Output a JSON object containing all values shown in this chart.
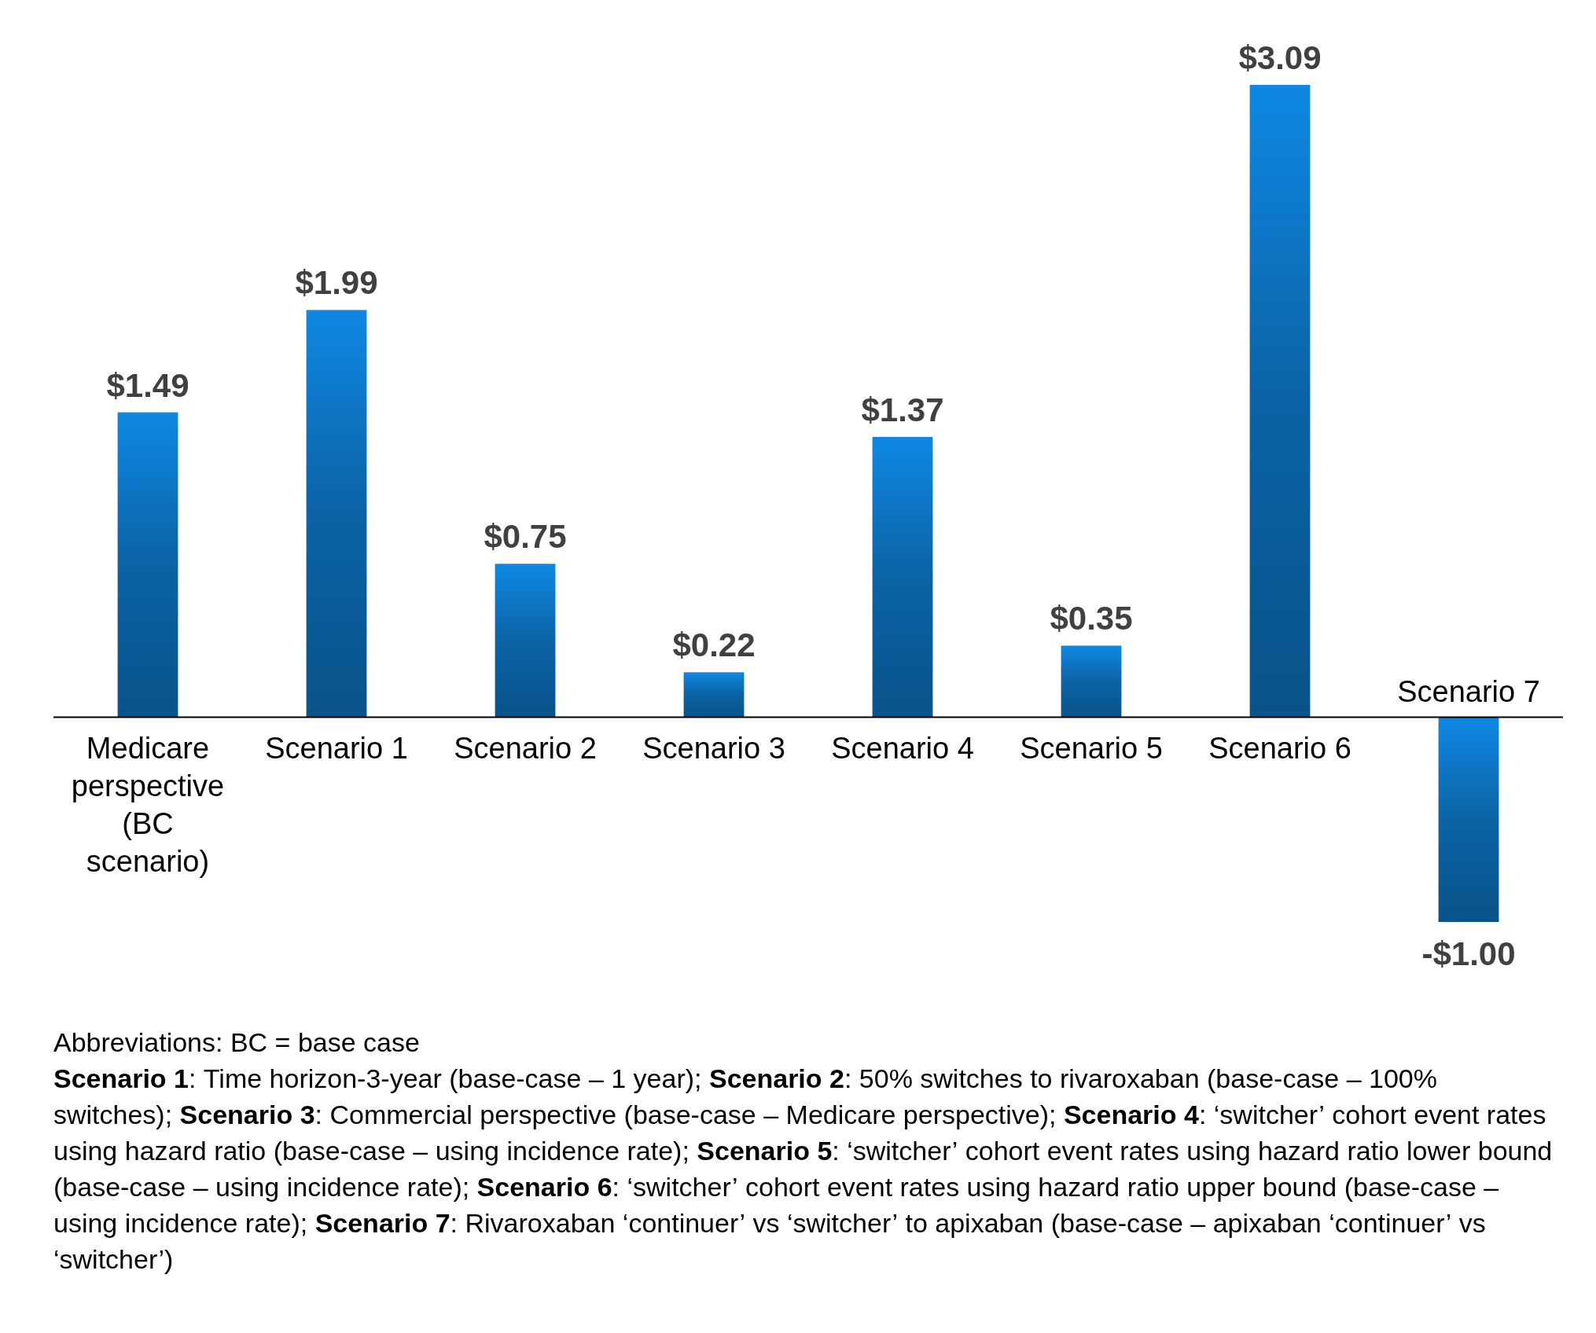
{
  "chart_data": {
    "type": "bar",
    "categories": [
      "Medicare perspective (BC scenario)",
      "Scenario 1",
      "Scenario 2",
      "Scenario 3",
      "Scenario 4",
      "Scenario 5",
      "Scenario 6",
      "Scenario 7"
    ],
    "values": [
      1.49,
      1.99,
      0.75,
      0.22,
      1.37,
      0.35,
      3.09,
      -1.0
    ],
    "value_labels": [
      "$1.49",
      "$1.99",
      "$0.75",
      "$0.22",
      "$1.37",
      "$0.35",
      "$3.09",
      "-$1.00"
    ],
    "color": "#0b63a5",
    "annotations": [
      "Abbreviations: BC = base case",
      "Scenario 1: Time horizon-3-year (base-case – 1 year);",
      "Scenario 2: 50% switches to rivaroxaban (base-case – 100% switches);",
      "Scenario 3: Commercial perspective (base-case – Medicare perspective);",
      "Scenario 4: ‘switcher’ cohort event rates using hazard ratio (base-case – using incidence rate);",
      "Scenario 5: ‘switcher’ cohort event rates using hazard ratio lower bound (base-case – using incidence rate);",
      "Scenario 6: ‘switcher’ cohort event rates using hazard ratio upper bound (base-case – using incidence rate);",
      "Scenario 7: Rivaroxaban ‘continuer’ vs ‘switcher’ to apixaban (base-case – apixaban ‘continuer’ vs ‘switcher’)"
    ]
  }
}
